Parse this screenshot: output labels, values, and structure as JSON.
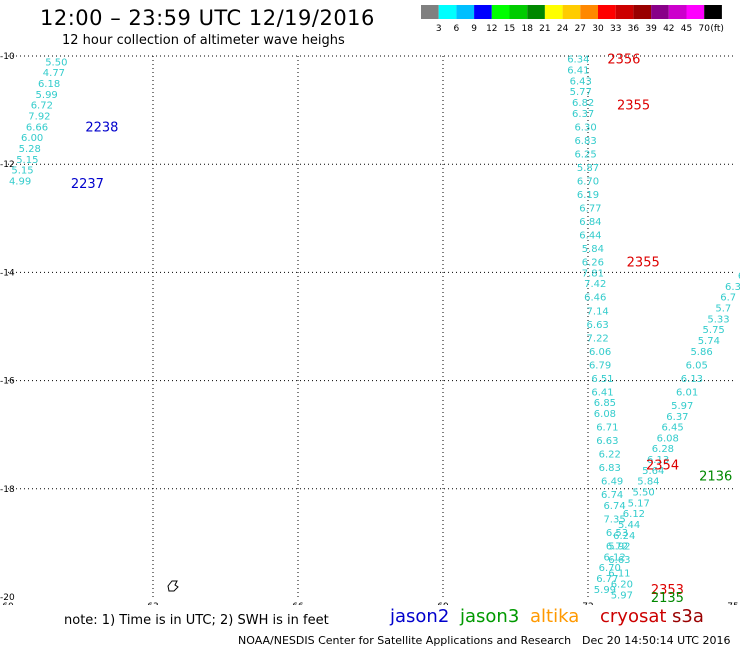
{
  "header": {
    "title": "12:00 – 23:59 UTC 12/19/2016",
    "subtitle": "12 hour collection of altimeter wave heighs"
  },
  "colorbar": {
    "colors": [
      "#808080",
      "#00ffff",
      "#00bfff",
      "#0000ff",
      "#00ff00",
      "#00cc00",
      "#008800",
      "#ffff00",
      "#ffcc00",
      "#ff8800",
      "#ff0000",
      "#cc0000",
      "#990000",
      "#880088",
      "#cc00cc",
      "#ff00ff",
      "#000000"
    ],
    "labels": [
      "3",
      "6",
      "9",
      "12",
      "15",
      "18",
      "21",
      "24",
      "27",
      "30",
      "33",
      "36",
      "39",
      "42",
      "45",
      "70"
    ],
    "unit": "(ft)"
  },
  "axes": {
    "x_labels": [
      "60",
      "63",
      "66",
      "69",
      "72",
      "75"
    ],
    "y_labels": [
      "-10",
      "-12",
      "-14",
      "-16",
      "-18",
      "-20"
    ]
  },
  "chart_data": {
    "type": "scatter",
    "xlim": [
      60,
      75
    ],
    "ylim": [
      -20,
      -10
    ],
    "grid": true,
    "tracks": [
      {
        "name": "track-a",
        "color": "#33cccc",
        "points": [
          {
            "lon": 61.0,
            "lat": -10.1,
            "swh": "5.50"
          },
          {
            "lon": 60.95,
            "lat": -10.3,
            "swh": "4.77"
          },
          {
            "lon": 60.85,
            "lat": -10.5,
            "swh": "6.18"
          },
          {
            "lon": 60.8,
            "lat": -10.7,
            "swh": "5.99"
          },
          {
            "lon": 60.7,
            "lat": -10.9,
            "swh": "6.72"
          },
          {
            "lon": 60.65,
            "lat": -11.1,
            "swh": "7.92"
          },
          {
            "lon": 60.6,
            "lat": -11.3,
            "swh": "6.66"
          },
          {
            "lon": 60.5,
            "lat": -11.5,
            "swh": "6.00"
          },
          {
            "lon": 60.45,
            "lat": -11.7,
            "swh": "5.28"
          },
          {
            "lon": 60.4,
            "lat": -11.9,
            "swh": "5.15"
          },
          {
            "lon": 60.3,
            "lat": -12.1,
            "swh": "5.15"
          },
          {
            "lon": 60.25,
            "lat": -12.3,
            "swh": "4.99"
          }
        ]
      },
      {
        "name": "track-b",
        "color": "#33cccc",
        "points": [
          {
            "lon": 71.8,
            "lat": -10.05,
            "swh": "6.34"
          },
          {
            "lon": 71.8,
            "lat": -10.25,
            "swh": "6.41"
          },
          {
            "lon": 71.85,
            "lat": -10.45,
            "swh": "6.43"
          },
          {
            "lon": 71.85,
            "lat": -10.65,
            "swh": "5.77"
          },
          {
            "lon": 71.9,
            "lat": -10.85,
            "swh": "6.82"
          },
          {
            "lon": 71.9,
            "lat": -11.05,
            "swh": "6.37"
          },
          {
            "lon": 71.95,
            "lat": -11.3,
            "swh": "6.30"
          },
          {
            "lon": 71.95,
            "lat": -11.55,
            "swh": "6.83"
          },
          {
            "lon": 71.95,
            "lat": -11.8,
            "swh": "6.25"
          },
          {
            "lon": 72.0,
            "lat": -12.05,
            "swh": "5.87"
          },
          {
            "lon": 72.0,
            "lat": -12.3,
            "swh": "6.70"
          },
          {
            "lon": 72.0,
            "lat": -12.55,
            "swh": "6.19"
          },
          {
            "lon": 72.05,
            "lat": -12.8,
            "swh": "6.77"
          },
          {
            "lon": 72.05,
            "lat": -13.05,
            "swh": "6.84"
          },
          {
            "lon": 72.05,
            "lat": -13.3,
            "swh": "6.44"
          },
          {
            "lon": 72.1,
            "lat": -13.55,
            "swh": "5.84"
          },
          {
            "lon": 72.1,
            "lat": -13.8,
            "swh": "6.26"
          },
          {
            "lon": 72.1,
            "lat": -14.0,
            "swh": "7.81"
          },
          {
            "lon": 72.15,
            "lat": -14.2,
            "swh": "7.42"
          },
          {
            "lon": 72.15,
            "lat": -14.45,
            "swh": "6.46"
          },
          {
            "lon": 72.2,
            "lat": -14.7,
            "swh": "7.14"
          },
          {
            "lon": 72.2,
            "lat": -14.95,
            "swh": "6.63"
          },
          {
            "lon": 72.2,
            "lat": -15.2,
            "swh": "7.22"
          },
          {
            "lon": 72.25,
            "lat": -15.45,
            "swh": "6.06"
          },
          {
            "lon": 72.25,
            "lat": -15.7,
            "swh": "6.79"
          },
          {
            "lon": 72.3,
            "lat": -15.95,
            "swh": "6.51"
          },
          {
            "lon": 72.3,
            "lat": -16.2,
            "swh": "6.41"
          },
          {
            "lon": 72.35,
            "lat": -16.4,
            "swh": "6.85"
          },
          {
            "lon": 72.35,
            "lat": -16.6,
            "swh": "6.08"
          },
          {
            "lon": 72.4,
            "lat": -16.85,
            "swh": "6.71"
          },
          {
            "lon": 72.4,
            "lat": -17.1,
            "swh": "6.63"
          },
          {
            "lon": 72.45,
            "lat": -17.35,
            "swh": "6.22"
          },
          {
            "lon": 72.45,
            "lat": -17.6,
            "swh": "6.83"
          },
          {
            "lon": 72.5,
            "lat": -17.85,
            "swh": "6.49"
          },
          {
            "lon": 72.5,
            "lat": -18.1,
            "swh": "6.74"
          },
          {
            "lon": 72.55,
            "lat": -18.3,
            "swh": "6.74"
          },
          {
            "lon": 72.55,
            "lat": -18.55,
            "swh": "7.35"
          },
          {
            "lon": 72.6,
            "lat": -18.8,
            "swh": "6.53"
          },
          {
            "lon": 72.6,
            "lat": -19.05,
            "swh": "6.72"
          },
          {
            "lon": 72.65,
            "lat": -19.3,
            "swh": "6.63"
          },
          {
            "lon": 72.65,
            "lat": -19.55,
            "swh": "6.11"
          },
          {
            "lon": 72.7,
            "lat": -19.75,
            "swh": "6.20"
          },
          {
            "lon": 72.7,
            "lat": -19.95,
            "swh": "5.97"
          }
        ]
      },
      {
        "name": "track-c",
        "color": "#33cccc",
        "points": [
          {
            "lon": 75.2,
            "lat": -14.05,
            "swh": "6."
          },
          {
            "lon": 75.0,
            "lat": -14.25,
            "swh": "6.3"
          },
          {
            "lon": 74.9,
            "lat": -14.45,
            "swh": "6.7"
          },
          {
            "lon": 74.8,
            "lat": -14.65,
            "swh": "5.7"
          },
          {
            "lon": 74.7,
            "lat": -14.85,
            "swh": "5.33"
          },
          {
            "lon": 74.6,
            "lat": -15.05,
            "swh": "5.75"
          },
          {
            "lon": 74.5,
            "lat": -15.25,
            "swh": "5.74"
          },
          {
            "lon": 74.35,
            "lat": -15.45,
            "swh": "5.86"
          },
          {
            "lon": 74.25,
            "lat": -15.7,
            "swh": "6.05"
          },
          {
            "lon": 74.15,
            "lat": -15.95,
            "swh": "6.13"
          },
          {
            "lon": 74.05,
            "lat": -16.2,
            "swh": "6.01"
          },
          {
            "lon": 73.95,
            "lat": -16.45,
            "swh": "5.97"
          },
          {
            "lon": 73.85,
            "lat": -16.65,
            "swh": "6.37"
          },
          {
            "lon": 73.75,
            "lat": -16.85,
            "swh": "6.45"
          },
          {
            "lon": 73.65,
            "lat": -17.05,
            "swh": "6.08"
          },
          {
            "lon": 73.55,
            "lat": -17.25,
            "swh": "6.28"
          },
          {
            "lon": 73.45,
            "lat": -17.45,
            "swh": "6.13"
          },
          {
            "lon": 73.35,
            "lat": -17.65,
            "swh": "5.64"
          },
          {
            "lon": 73.25,
            "lat": -17.85,
            "swh": "5.84"
          },
          {
            "lon": 73.15,
            "lat": -18.05,
            "swh": "5.50"
          },
          {
            "lon": 73.05,
            "lat": -18.25,
            "swh": "5.17"
          },
          {
            "lon": 72.95,
            "lat": -18.45,
            "swh": "6.12"
          },
          {
            "lon": 72.85,
            "lat": -18.65,
            "swh": "5.44"
          },
          {
            "lon": 72.75,
            "lat": -18.85,
            "swh": "6.24"
          },
          {
            "lon": 72.65,
            "lat": -19.05,
            "swh": "5.92"
          },
          {
            "lon": 72.55,
            "lat": -19.25,
            "swh": "6.12"
          },
          {
            "lon": 72.45,
            "lat": -19.45,
            "swh": "6.70"
          },
          {
            "lon": 72.4,
            "lat": -19.65,
            "swh": "6.77"
          },
          {
            "lon": 72.35,
            "lat": -19.85,
            "swh": "5.99"
          }
        ]
      }
    ],
    "time_labels": [
      {
        "lon": 61.6,
        "lat": -11.3,
        "text": "2238",
        "color": "#0000cc"
      },
      {
        "lon": 61.3,
        "lat": -12.35,
        "text": "2237",
        "color": "#0000cc"
      },
      {
        "lon": 72.4,
        "lat": -10.05,
        "text": "2356",
        "color": "#dd0000"
      },
      {
        "lon": 72.6,
        "lat": -10.9,
        "text": "2355",
        "color": "#dd0000"
      },
      {
        "lon": 72.8,
        "lat": -13.8,
        "text": "2355",
        "color": "#dd0000"
      },
      {
        "lon": 73.2,
        "lat": -17.55,
        "text": "2354",
        "color": "#dd0000"
      },
      {
        "lon": 74.3,
        "lat": -17.75,
        "text": "2136",
        "color": "#008800"
      },
      {
        "lon": 73.3,
        "lat": -19.85,
        "text": "2353",
        "color": "#dd0000"
      },
      {
        "lon": 73.3,
        "lat": -20.0,
        "text": "2135",
        "color": "#008800"
      }
    ]
  },
  "footer": {
    "note": "note:  1) Time is in UTC;  2) SWH is in feet",
    "satellites": [
      {
        "name": "jason2",
        "color": "#0000cc"
      },
      {
        "name": "jason3",
        "color": "#009900"
      },
      {
        "name": "altika",
        "color": "#ff9900"
      },
      {
        "name": "cryosat",
        "color": "#cc0000"
      },
      {
        "name": "s3a",
        "color": "#990000"
      }
    ],
    "credit": "NOAA/NESDIS Center for Satellite Applications and Research",
    "timestamp": "Dec 20 14:50:14 UTC 2016"
  }
}
